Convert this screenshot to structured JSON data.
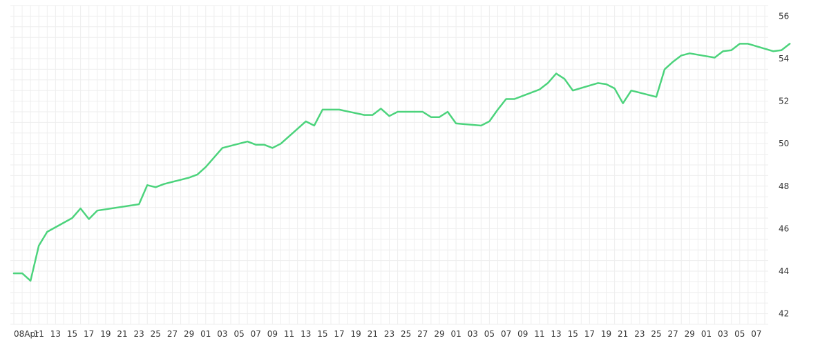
{
  "chart_data": {
    "type": "line",
    "title": "",
    "xlabel": "",
    "ylabel": "",
    "ylim": [
      41.5,
      56.5
    ],
    "y_axis_side": "right",
    "grid": true,
    "legend": "none",
    "line_color": "#4cd37c",
    "grid_color": "#eeeeee",
    "y_ticks": [
      42,
      44,
      46,
      48,
      50,
      52,
      54,
      56
    ],
    "x_tick_labels": [
      "08Apr",
      "11",
      "13",
      "15",
      "17",
      "19",
      "21",
      "23",
      "25",
      "27",
      "29",
      "01",
      "03",
      "05",
      "07",
      "09",
      "11",
      "13",
      "15",
      "17",
      "19",
      "21",
      "23",
      "25",
      "27",
      "29",
      "01",
      "03",
      "05",
      "07",
      "09",
      "11",
      "13",
      "15",
      "17",
      "19",
      "21",
      "23",
      "25",
      "27",
      "29",
      "01",
      "03",
      "05",
      "07"
    ],
    "series": [
      {
        "name": "",
        "x": [
          0,
          1,
          2,
          3,
          4,
          7,
          8,
          9,
          10,
          15,
          16,
          17,
          18,
          21,
          22,
          23,
          24,
          25,
          28,
          29,
          30,
          31,
          32,
          35,
          36,
          37,
          38,
          39,
          42,
          43,
          44,
          45,
          46,
          49,
          50,
          51,
          52,
          53,
          56,
          57,
          58,
          59,
          60,
          63,
          64,
          65,
          66,
          67,
          70,
          71,
          72,
          73,
          74,
          77,
          78,
          79,
          80,
          81,
          84,
          85,
          86,
          87,
          88,
          91,
          92,
          93,
          94,
          95,
          98,
          99,
          100,
          101,
          102,
          105,
          106,
          107,
          108,
          109,
          112,
          113,
          114,
          115,
          116,
          119,
          120,
          121
        ],
        "values": [
          43.9,
          43.9,
          43.55,
          45.2,
          45.85,
          46.5,
          46.95,
          46.45,
          46.85,
          47.15,
          48.05,
          47.95,
          48.1,
          48.4,
          48.55,
          48.9,
          49.35,
          49.8,
          50.1,
          49.95,
          49.95,
          49.8,
          50.0,
          51.05,
          50.85,
          51.6,
          51.6,
          51.6,
          51.35,
          51.35,
          51.65,
          51.3,
          51.5,
          51.5,
          51.25,
          51.25,
          51.5,
          50.95,
          50.85,
          51.05,
          51.6,
          52.1,
          52.1,
          52.55,
          52.85,
          53.3,
          53.05,
          52.5,
          52.85,
          52.8,
          52.6,
          51.9,
          52.5,
          52.2,
          53.5,
          53.85,
          54.15,
          54.25,
          54.05,
          54.35,
          54.4,
          54.7,
          54.7,
          54.35,
          54.4,
          54.7,
          54.7,
          54.7,
          54.7,
          54.7,
          54.7,
          54.7,
          54.7,
          54.7,
          54.7,
          54.7,
          54.7,
          54.7,
          54.7,
          54.7,
          54.7,
          54.7,
          54.7,
          54.7,
          54.7,
          54.7
        ]
      }
    ]
  }
}
